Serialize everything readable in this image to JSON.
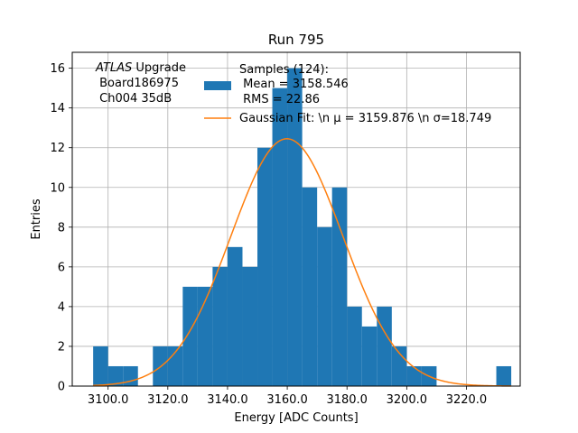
{
  "chart_data": {
    "type": "bar",
    "title": "Run 795",
    "xlabel": "Energy [ADC Counts]",
    "ylabel": "Entries",
    "xlim": [
      3088,
      3238
    ],
    "ylim": [
      0,
      16.8
    ],
    "grid": true,
    "x_ticks": [
      3100,
      3120,
      3140,
      3160,
      3180,
      3200,
      3220
    ],
    "x_tick_labels": [
      "3100.0",
      "3120.0",
      "3140.0",
      "3160.0",
      "3180.0",
      "3200.0",
      "3220.0"
    ],
    "y_ticks": [
      0,
      2,
      4,
      6,
      8,
      10,
      12,
      14,
      16
    ],
    "y_tick_labels": [
      "0",
      "2",
      "4",
      "6",
      "8",
      "10",
      "12",
      "14",
      "16"
    ],
    "histogram": {
      "bin_width": 5,
      "color": "#1f77b4",
      "bins": [
        {
          "left": 3095,
          "count": 2
        },
        {
          "left": 3100,
          "count": 1
        },
        {
          "left": 3105,
          "count": 1
        },
        {
          "left": 3115,
          "count": 2
        },
        {
          "left": 3120,
          "count": 2
        },
        {
          "left": 3125,
          "count": 5
        },
        {
          "left": 3130,
          "count": 5
        },
        {
          "left": 3135,
          "count": 6
        },
        {
          "left": 3140,
          "count": 7
        },
        {
          "left": 3145,
          "count": 6
        },
        {
          "left": 3150,
          "count": 12
        },
        {
          "left": 3155,
          "count": 15
        },
        {
          "left": 3160,
          "count": 16
        },
        {
          "left": 3165,
          "count": 10
        },
        {
          "left": 3170,
          "count": 8
        },
        {
          "left": 3175,
          "count": 10
        },
        {
          "left": 3180,
          "count": 4
        },
        {
          "left": 3185,
          "count": 3
        },
        {
          "left": 3190,
          "count": 4
        },
        {
          "left": 3195,
          "count": 2
        },
        {
          "left": 3200,
          "count": 1
        },
        {
          "left": 3205,
          "count": 1
        },
        {
          "left": 3230,
          "count": 1
        }
      ]
    },
    "fit": {
      "type": "gaussian",
      "mu": 3159.876,
      "sigma": 18.749,
      "amplitude": 12.45,
      "x_range": [
        3095,
        3235
      ],
      "color": "#ff7f0e"
    },
    "annotation": {
      "italic": "ATLAS",
      "line1_rest": " Upgrade",
      "line2": " Board186975",
      "line3": " Ch004 35dB"
    },
    "legend": {
      "position": "top-center",
      "samples_line1": "Samples (124):",
      "samples_line2": " Mean = 3158.546",
      "samples_line3": " RMS = 22.86",
      "fit_label": "Gaussian Fit: \\n μ = 3159.876 \\n σ=18.749"
    }
  }
}
